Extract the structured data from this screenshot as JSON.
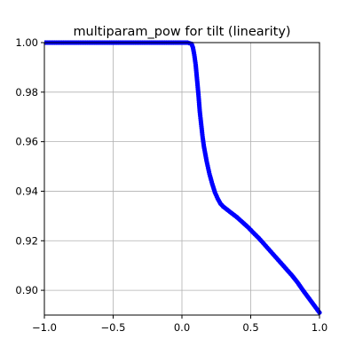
{
  "chart_data": {
    "type": "scatter",
    "title": "multiparam_pow for tilt (linearity)",
    "xlabel": "",
    "ylabel": "",
    "xlim": [
      -1.0,
      1.0
    ],
    "ylim": [
      0.89,
      1.0
    ],
    "grid": true,
    "marker_color": "#0000ff",
    "x_ticks": [
      -1.0,
      -0.5,
      0.0,
      0.5,
      1.0
    ],
    "x_tick_labels": [
      "−1.0",
      "−0.5",
      "0.0",
      "0.5",
      "1.0"
    ],
    "y_ticks": [
      0.9,
      0.92,
      0.94,
      0.96,
      0.98,
      1.0
    ],
    "y_tick_labels": [
      "0.90",
      "0.92",
      "0.94",
      "0.96",
      "0.98",
      "1.00"
    ],
    "series": [
      {
        "points": [
          [
            -1.0,
            1.0
          ],
          [
            -0.95,
            1.0
          ],
          [
            -0.9,
            1.0
          ],
          [
            -0.85,
            1.0
          ],
          [
            -0.8,
            1.0
          ],
          [
            -0.75,
            1.0
          ],
          [
            -0.7,
            1.0
          ],
          [
            -0.65,
            1.0
          ],
          [
            -0.6,
            1.0
          ],
          [
            -0.55,
            1.0
          ],
          [
            -0.5,
            1.0
          ],
          [
            -0.45,
            1.0
          ],
          [
            -0.4,
            1.0
          ],
          [
            -0.35,
            1.0
          ],
          [
            -0.3,
            1.0
          ],
          [
            -0.25,
            1.0
          ],
          [
            -0.2,
            1.0
          ],
          [
            -0.15,
            1.0
          ],
          [
            -0.1,
            1.0
          ],
          [
            -0.05,
            1.0
          ],
          [
            0.0,
            1.0
          ],
          [
            0.04,
            1.0
          ],
          [
            0.07,
            0.9995
          ],
          [
            0.08,
            0.998
          ],
          [
            0.09,
            0.995
          ],
          [
            0.1,
            0.991
          ],
          [
            0.11,
            0.985
          ],
          [
            0.12,
            0.979
          ],
          [
            0.13,
            0.972
          ],
          [
            0.14,
            0.967
          ],
          [
            0.15,
            0.962
          ],
          [
            0.16,
            0.958
          ],
          [
            0.17,
            0.955
          ],
          [
            0.18,
            0.952
          ],
          [
            0.19,
            0.9495
          ],
          [
            0.2,
            0.947
          ],
          [
            0.22,
            0.943
          ],
          [
            0.24,
            0.9395
          ],
          [
            0.26,
            0.937
          ],
          [
            0.28,
            0.935
          ],
          [
            0.3,
            0.9338
          ],
          [
            0.33,
            0.9325
          ],
          [
            0.36,
            0.9312
          ],
          [
            0.4,
            0.9295
          ],
          [
            0.44,
            0.9275
          ],
          [
            0.48,
            0.9255
          ],
          [
            0.52,
            0.9232
          ],
          [
            0.56,
            0.921
          ],
          [
            0.6,
            0.9185
          ],
          [
            0.64,
            0.916
          ],
          [
            0.68,
            0.9135
          ],
          [
            0.72,
            0.911
          ],
          [
            0.76,
            0.9085
          ],
          [
            0.8,
            0.906
          ],
          [
            0.84,
            0.9032
          ],
          [
            0.88,
            0.9
          ],
          [
            0.92,
            0.897
          ],
          [
            0.96,
            0.894
          ],
          [
            1.0,
            0.891
          ]
        ]
      }
    ]
  }
}
